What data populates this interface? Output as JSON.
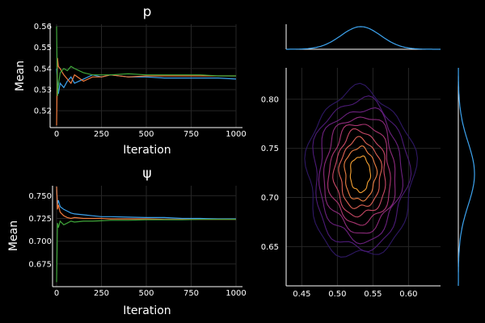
{
  "chart_data": [
    {
      "type": "line",
      "title": "p",
      "xlabel": "Iteration",
      "ylabel": "Mean",
      "xlim": [
        0,
        1000
      ],
      "ylim": [
        0.512,
        0.561
      ],
      "xticks": [
        0,
        250,
        500,
        750,
        1000
      ],
      "yticks": [
        0.52,
        0.53,
        0.54,
        0.55,
        0.56
      ],
      "ytick_labels": [
        "0.52",
        "0.53",
        "0.54",
        "0.55",
        "0.56"
      ],
      "grid": true,
      "series": [
        {
          "color": "#3da4f0",
          "x": [
            0,
            10,
            20,
            40,
            60,
            80,
            100,
            150,
            200,
            250,
            300,
            400,
            500,
            600,
            700,
            800,
            900,
            1000
          ],
          "y": [
            0.54,
            0.528,
            0.533,
            0.531,
            0.534,
            0.536,
            0.533,
            0.535,
            0.537,
            0.536,
            0.537,
            0.536,
            0.536,
            0.5355,
            0.5355,
            0.5355,
            0.5355,
            0.535
          ]
        },
        {
          "color": "#f07a3d",
          "x": [
            0,
            5,
            10,
            20,
            40,
            60,
            80,
            100,
            150,
            200,
            250,
            300,
            400,
            500,
            600,
            700,
            800,
            900,
            1000
          ],
          "y": [
            0.513,
            0.545,
            0.541,
            0.54,
            0.537,
            0.535,
            0.533,
            0.537,
            0.534,
            0.536,
            0.536,
            0.537,
            0.536,
            0.5365,
            0.5365,
            0.5365,
            0.5365,
            0.5365,
            0.5365
          ]
        },
        {
          "color": "#3fa63a",
          "x": [
            0,
            5,
            10,
            20,
            40,
            60,
            80,
            100,
            150,
            200,
            250,
            300,
            400,
            500,
            600,
            700,
            800,
            900,
            1000
          ],
          "y": [
            0.56,
            0.527,
            0.532,
            0.538,
            0.54,
            0.539,
            0.541,
            0.54,
            0.538,
            0.537,
            0.537,
            0.537,
            0.5375,
            0.537,
            0.537,
            0.537,
            0.537,
            0.5365,
            0.5365
          ]
        }
      ]
    },
    {
      "type": "line",
      "title": "ψ",
      "xlabel": "Iteration",
      "ylabel": "Mean",
      "xlim": [
        0,
        1000
      ],
      "ylim": [
        0.65,
        0.761
      ],
      "xticks": [
        0,
        250,
        500,
        750,
        1000
      ],
      "yticks": [
        0.675,
        0.7,
        0.725,
        0.75
      ],
      "ytick_labels": [
        "0.675",
        "0.700",
        "0.725",
        "0.750"
      ],
      "grid": true,
      "series": [
        {
          "color": "#3da4f0",
          "x": [
            0,
            5,
            10,
            20,
            40,
            60,
            80,
            100,
            150,
            200,
            250,
            300,
            400,
            500,
            600,
            700,
            800,
            900,
            1000
          ],
          "y": [
            0.76,
            0.74,
            0.745,
            0.738,
            0.735,
            0.733,
            0.731,
            0.73,
            0.729,
            0.728,
            0.727,
            0.727,
            0.7265,
            0.726,
            0.726,
            0.725,
            0.725,
            0.7245,
            0.7245
          ]
        },
        {
          "color": "#f07a3d",
          "x": [
            0,
            5,
            10,
            20,
            40,
            60,
            80,
            100,
            150,
            200,
            250,
            300,
            400,
            500,
            600,
            700,
            800,
            900,
            1000
          ],
          "y": [
            0.76,
            0.735,
            0.74,
            0.732,
            0.728,
            0.726,
            0.725,
            0.726,
            0.725,
            0.725,
            0.725,
            0.7245,
            0.7245,
            0.7245,
            0.724,
            0.724,
            0.724,
            0.724,
            0.724
          ]
        },
        {
          "color": "#3fa63a",
          "x": [
            0,
            5,
            10,
            20,
            40,
            60,
            80,
            100,
            150,
            200,
            250,
            300,
            400,
            500,
            600,
            700,
            800,
            900,
            1000
          ],
          "y": [
            0.655,
            0.72,
            0.715,
            0.722,
            0.718,
            0.72,
            0.722,
            0.721,
            0.722,
            0.722,
            0.7225,
            0.723,
            0.723,
            0.7235,
            0.7235,
            0.7235,
            0.724,
            0.724,
            0.724
          ]
        }
      ]
    },
    {
      "type": "contour",
      "title": "",
      "xlim": [
        0.428,
        0.645
      ],
      "ylim": [
        0.61,
        0.832
      ],
      "xticks": [
        0.45,
        0.5,
        0.55,
        0.6
      ],
      "xtick_labels": [
        "0.45",
        "0.50",
        "0.55",
        "0.60"
      ],
      "yticks": [
        0.65,
        0.7,
        0.75,
        0.8
      ],
      "ytick_labels": [
        "0.65",
        "0.70",
        "0.75",
        "0.80"
      ],
      "grid": true,
      "center": [
        0.532,
        0.724
      ],
      "levels": [
        {
          "color": "#2f1865",
          "sx": 0.075,
          "sy": 0.085
        },
        {
          "color": "#4d1b78",
          "sx": 0.066,
          "sy": 0.076
        },
        {
          "color": "#6d2180",
          "sx": 0.058,
          "sy": 0.067
        },
        {
          "color": "#8d2a7c",
          "sx": 0.05,
          "sy": 0.059
        },
        {
          "color": "#ad3673",
          "sx": 0.043,
          "sy": 0.051
        },
        {
          "color": "#c94966",
          "sx": 0.036,
          "sy": 0.043
        },
        {
          "color": "#de6254",
          "sx": 0.029,
          "sy": 0.035
        },
        {
          "color": "#ec7f42",
          "sx": 0.022,
          "sy": 0.027
        },
        {
          "color": "#f5a132",
          "sx": 0.014,
          "sy": 0.018
        }
      ],
      "marginal_x": {
        "color": "#3da4f0",
        "mean": 0.533,
        "sd": 0.028,
        "range": [
          0.428,
          0.645
        ]
      },
      "marginal_y": {
        "color": "#3da4f0",
        "mean": 0.724,
        "sd": 0.032,
        "range": [
          0.61,
          0.832
        ]
      }
    }
  ]
}
